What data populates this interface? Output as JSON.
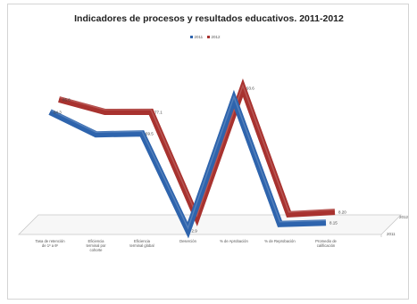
{
  "chart_data": {
    "type": "line",
    "title": "Indicadores de procesos y resultados educativos. 2011-2012",
    "categories": [
      [
        "Tasa de retención",
        "de 1º a 6º"
      ],
      [
        "Eficiencia",
        "terminal por",
        "cohorte"
      ],
      [
        "Eficiencia",
        "terminal global"
      ],
      [
        "Deserción"
      ],
      [
        "% de Aprobación"
      ],
      [
        "% de Reprobación"
      ],
      [
        "Promedio de",
        "calificación"
      ]
    ],
    "series": [
      {
        "name": "2011",
        "color": "#2e64ad",
        "values": [
          84.3,
          68.9,
          69.5,
          2.9,
          93.2,
          7.2,
          8.15
        ],
        "labels": [
          "84.3",
          "",
          "69.5",
          "2.9",
          "",
          "",
          "8.15"
        ]
      },
      {
        "name": "2012",
        "color": "#a8322f",
        "values": [
          85.6,
          77.0,
          77.1,
          4.1,
          93.6,
          6.5,
          8.2
        ],
        "labels": [
          "85.6",
          "",
          "77.1",
          "",
          "93.6",
          "",
          "8.20"
        ]
      }
    ],
    "legend": [
      "2011",
      "2012"
    ],
    "legend_position": "top",
    "depth_axis_labels": [
      "2011",
      "2012"
    ],
    "grid": false
  }
}
